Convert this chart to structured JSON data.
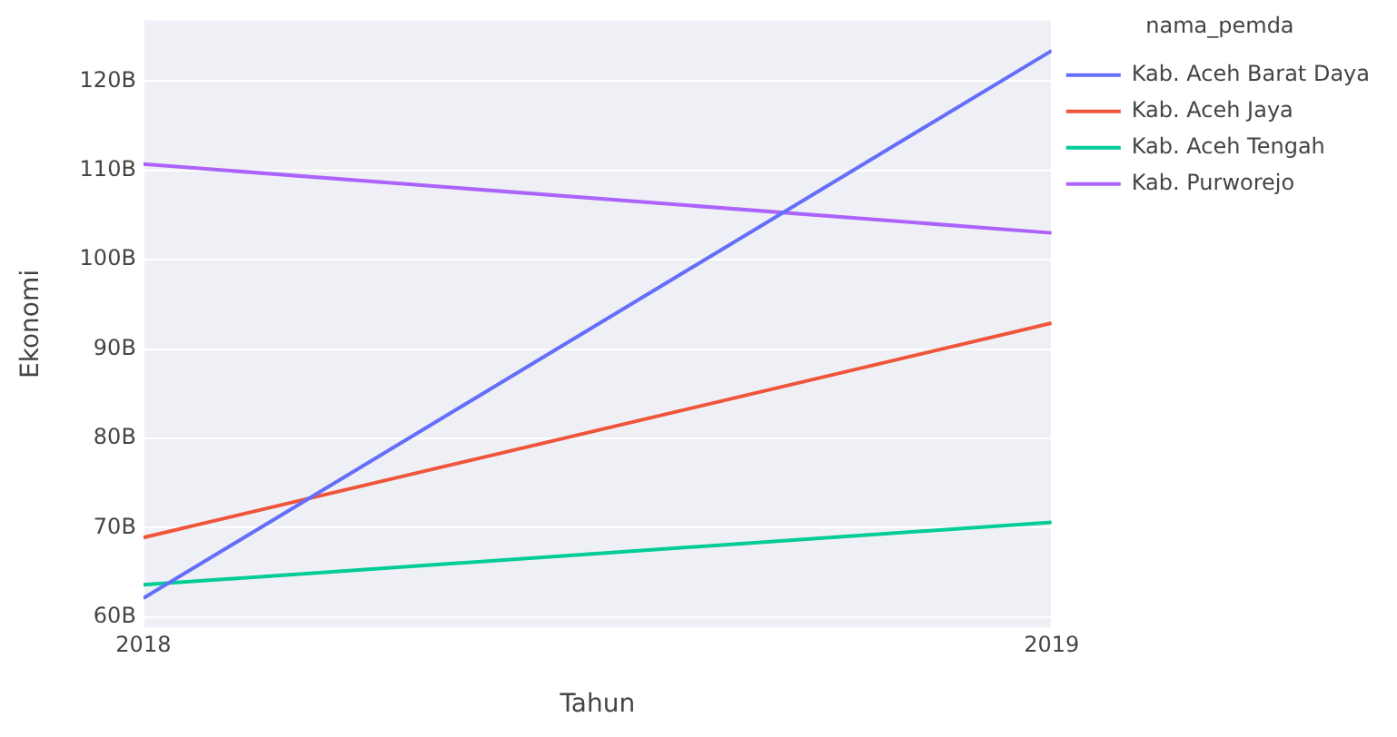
{
  "chart_data": {
    "type": "line",
    "xlabel": "Tahun",
    "ylabel": "Ekonomi",
    "legend_title": "nama_pemda",
    "legend": "top right",
    "grid": true,
    "marker": "none",
    "line_style": "solid",
    "x": [
      2018,
      2019
    ],
    "xlim": [
      2018,
      2019
    ],
    "xticks": [
      2018,
      2019
    ],
    "ylim": [
      58800000000,
      126800000000
    ],
    "yticks": [
      {
        "value": 60000000000,
        "label": "60B"
      },
      {
        "value": 70000000000,
        "label": "70B"
      },
      {
        "value": 80000000000,
        "label": "80B"
      },
      {
        "value": 90000000000,
        "label": "90B"
      },
      {
        "value": 100000000000,
        "label": "100B"
      },
      {
        "value": 110000000000,
        "label": "110B"
      },
      {
        "value": 120000000000,
        "label": "120B"
      }
    ],
    "series": [
      {
        "name": "Kab. Aceh Barat Daya",
        "color": "#636efa",
        "values": [
          62100000000,
          123400000000
        ]
      },
      {
        "name": "Kab. Aceh Jaya",
        "color": "#ef553b",
        "values": [
          68900000000,
          92900000000
        ]
      },
      {
        "name": "Kab. Aceh Tengah",
        "color": "#00cc96",
        "values": [
          63600000000,
          70600000000
        ]
      },
      {
        "name": "Kab. Purworejo",
        "color": "#ab63fa",
        "values": [
          110700000000,
          103000000000
        ]
      }
    ]
  }
}
